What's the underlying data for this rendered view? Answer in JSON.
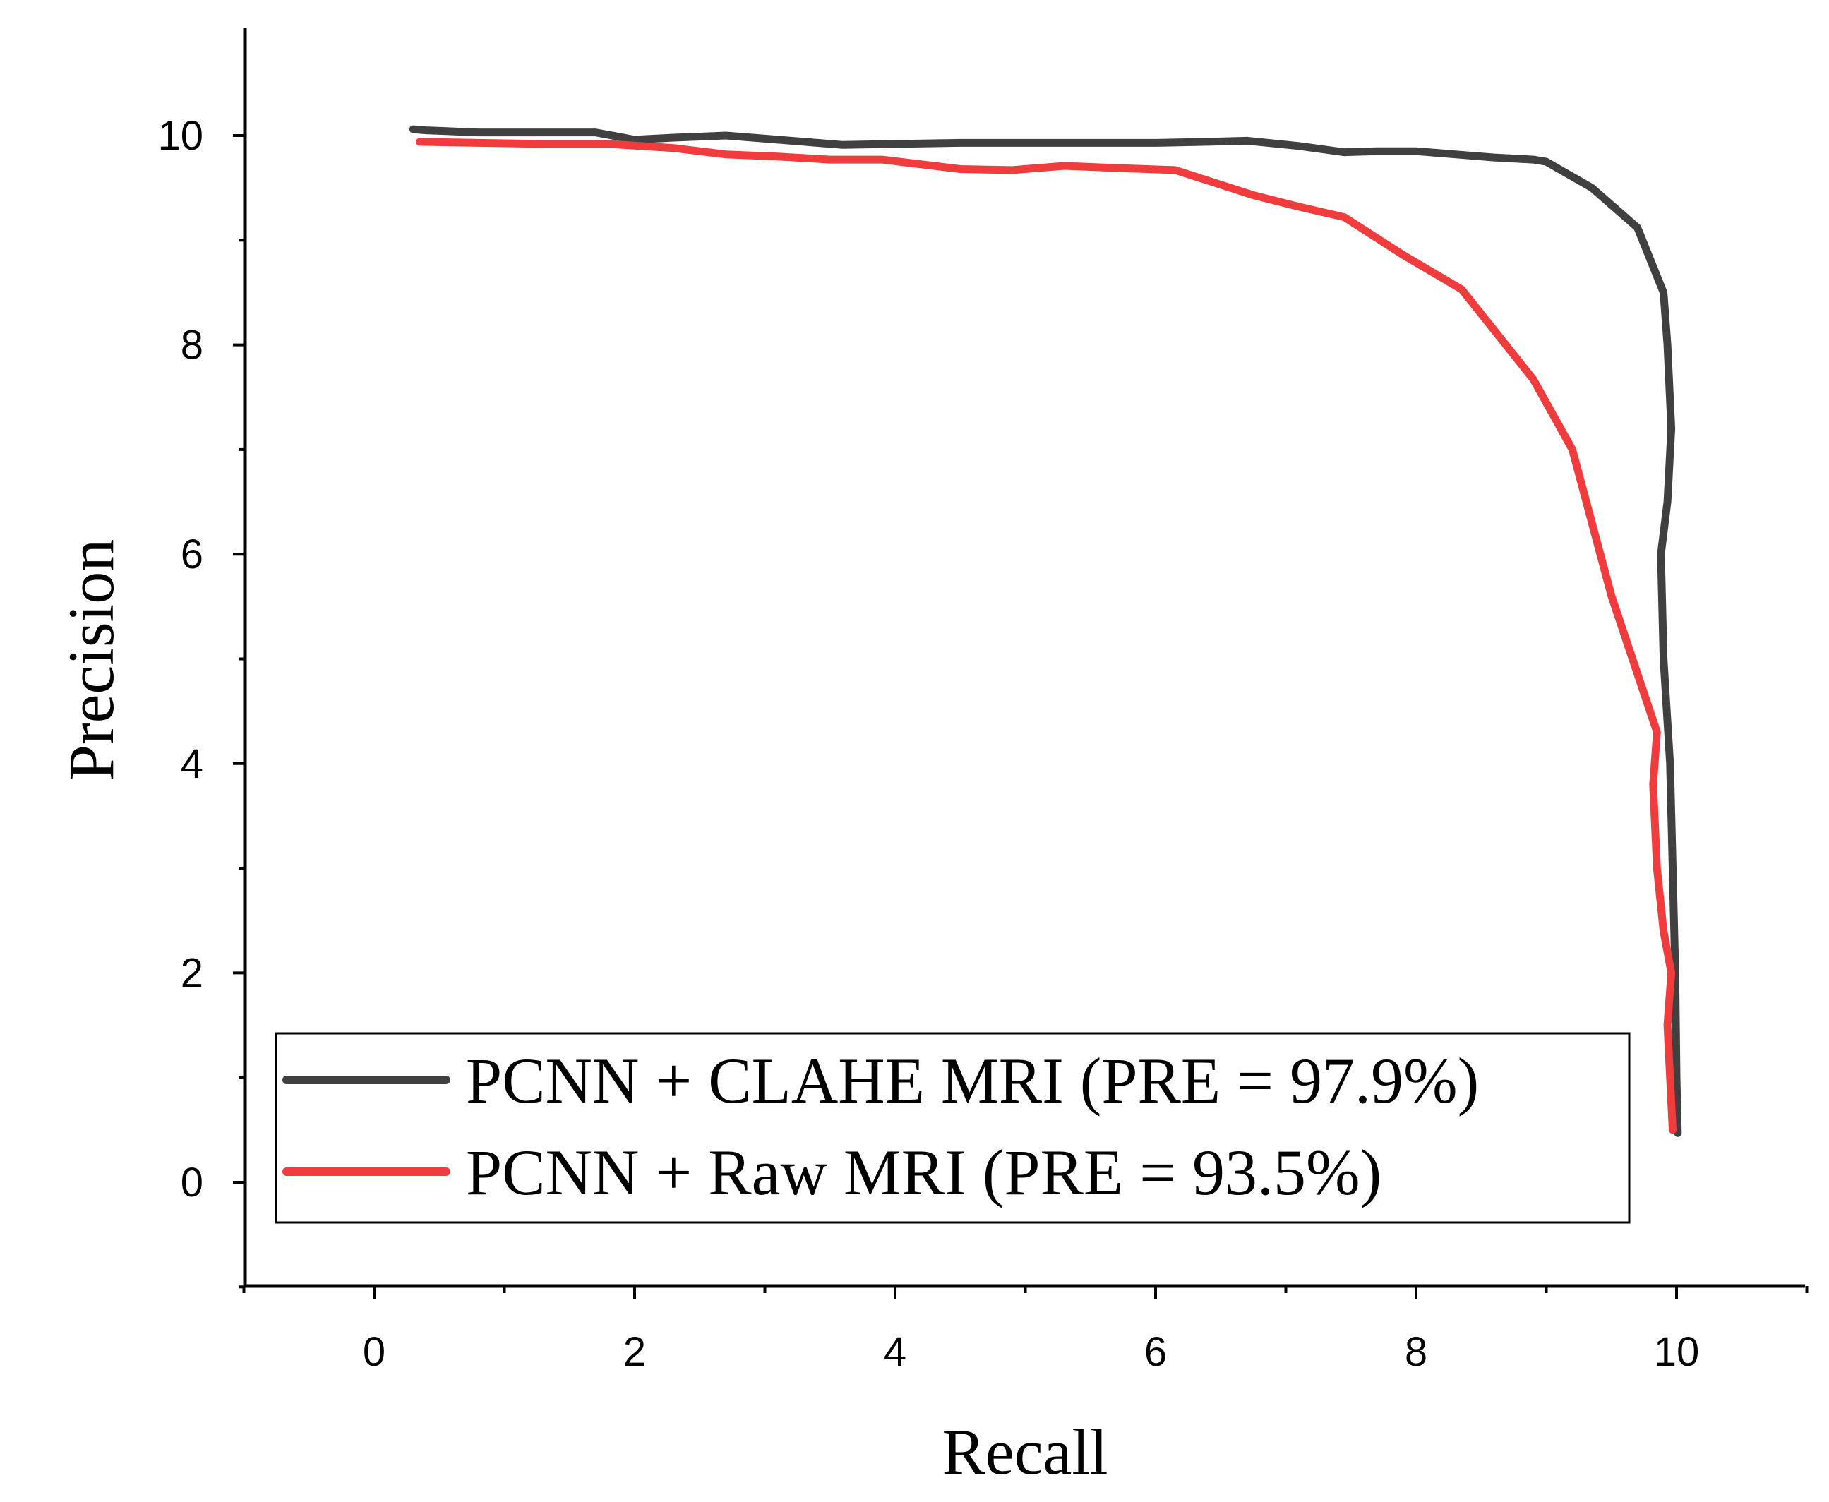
{
  "chart_data": {
    "type": "line",
    "title": "",
    "xlabel": "Recall",
    "ylabel": "Precision",
    "xlim": [
      -1,
      11
    ],
    "ylim": [
      -1,
      10.5
    ],
    "xticks": [
      0,
      2,
      4,
      6,
      8,
      10
    ],
    "yticks": [
      0,
      2,
      4,
      6,
      8,
      10
    ],
    "xtick_labels": [
      "0",
      "2",
      "4",
      "6",
      "8",
      "10"
    ],
    "ytick_labels": [
      "0",
      "2",
      "4",
      "6",
      "8",
      "10"
    ],
    "grid": false,
    "legend_position": "bottom-center",
    "series": [
      {
        "name": "PCNN + CLAHE MRI (PRE = 97.9%)",
        "color": "#404040",
        "x": [
          0.3,
          0.4,
          0.8,
          1.2,
          1.7,
          2.0,
          2.3,
          2.7,
          3.1,
          3.6,
          4.0,
          4.5,
          5.0,
          5.5,
          6.0,
          6.4,
          6.7,
          7.1,
          7.45,
          7.7,
          8.0,
          8.3,
          8.6,
          8.9,
          9.0,
          9.35,
          9.7,
          9.9,
          9.93,
          9.96,
          9.93,
          9.88,
          9.9,
          9.95,
          9.97,
          9.99,
          10.0,
          10.01
        ],
        "y": [
          10.06,
          10.05,
          10.03,
          10.03,
          10.03,
          9.96,
          9.98,
          10.0,
          9.96,
          9.91,
          9.92,
          9.93,
          9.93,
          9.93,
          9.93,
          9.94,
          9.95,
          9.9,
          9.84,
          9.85,
          9.85,
          9.82,
          9.79,
          9.77,
          9.75,
          9.5,
          9.12,
          8.5,
          8.0,
          7.2,
          6.5,
          6.0,
          5.0,
          4.0,
          3.0,
          2.0,
          1.0,
          0.47
        ]
      },
      {
        "name": "PCNN + Raw MRI (PRE = 93.5%)",
        "color": "#f03c3c",
        "x": [
          0.35,
          0.8,
          1.3,
          1.8,
          2.3,
          2.7,
          3.1,
          3.5,
          3.9,
          4.5,
          4.9,
          5.3,
          5.7,
          6.15,
          6.45,
          6.75,
          7.1,
          7.45,
          7.9,
          8.35,
          8.9,
          9.2,
          9.5,
          9.85,
          9.82,
          9.85,
          9.9,
          9.96,
          9.93,
          9.97
        ],
        "y": [
          9.94,
          9.93,
          9.92,
          9.92,
          9.88,
          9.82,
          9.8,
          9.77,
          9.77,
          9.68,
          9.67,
          9.71,
          9.69,
          9.67,
          9.55,
          9.43,
          9.32,
          9.22,
          8.86,
          8.53,
          7.67,
          7.0,
          5.6,
          4.3,
          3.8,
          3.0,
          2.4,
          2.0,
          1.5,
          0.5
        ]
      }
    ]
  }
}
